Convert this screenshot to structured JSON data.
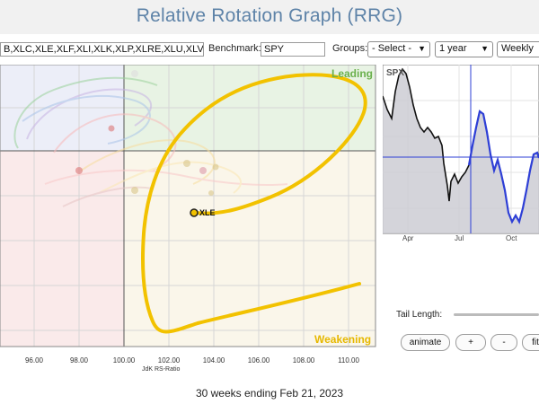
{
  "header": {
    "title": "Relative Rotation Graph (RRG)"
  },
  "controls": {
    "symbols_value": "B,XLC,XLE,XLF,XLI,XLK,XLP,XLRE,XLU,XLV,XL",
    "benchmark_label": "Benchmark:",
    "benchmark_value": "SPY",
    "groups_label": "Groups:",
    "groups_value": "- Select -",
    "period_value": "1 year",
    "frequency_value": "Weekly"
  },
  "rrg": {
    "quadrant_labels": {
      "leading": "Leading",
      "weakening": "Weakening"
    },
    "x_axis_title": "JdK RS-Ratio",
    "x_ticks": [
      "96.00",
      "98.00",
      "100.00",
      "102.00",
      "104.00",
      "106.00",
      "108.00",
      "110.00"
    ],
    "highlight_symbol": "XLE",
    "colors": {
      "leading_bg": "#e8f3e4",
      "weakening_bg": "#faf6ea",
      "lagging_bg": "#faeaea",
      "improving_bg": "#eceef8",
      "leading_text": "#6ab04c",
      "weakening_text": "#e6b800",
      "tail_highlight": "#f2c200"
    }
  },
  "price_chart": {
    "symbol": "SPX",
    "month_ticks": [
      "Apr",
      "Jul",
      "Oct"
    ],
    "colors": {
      "pre_line": "#111111",
      "post_line": "#2e3fd6",
      "fill": "#cdcdd3",
      "crosshair": "#2e3fd6"
    }
  },
  "bottom_controls": {
    "tail_length_label": "Tail Length:",
    "animate_label": "animate",
    "plus_label": "+",
    "minus_label": "-",
    "fit_label": "fit"
  },
  "footer": {
    "status": "30 weeks ending Feb 21, 2023"
  }
}
